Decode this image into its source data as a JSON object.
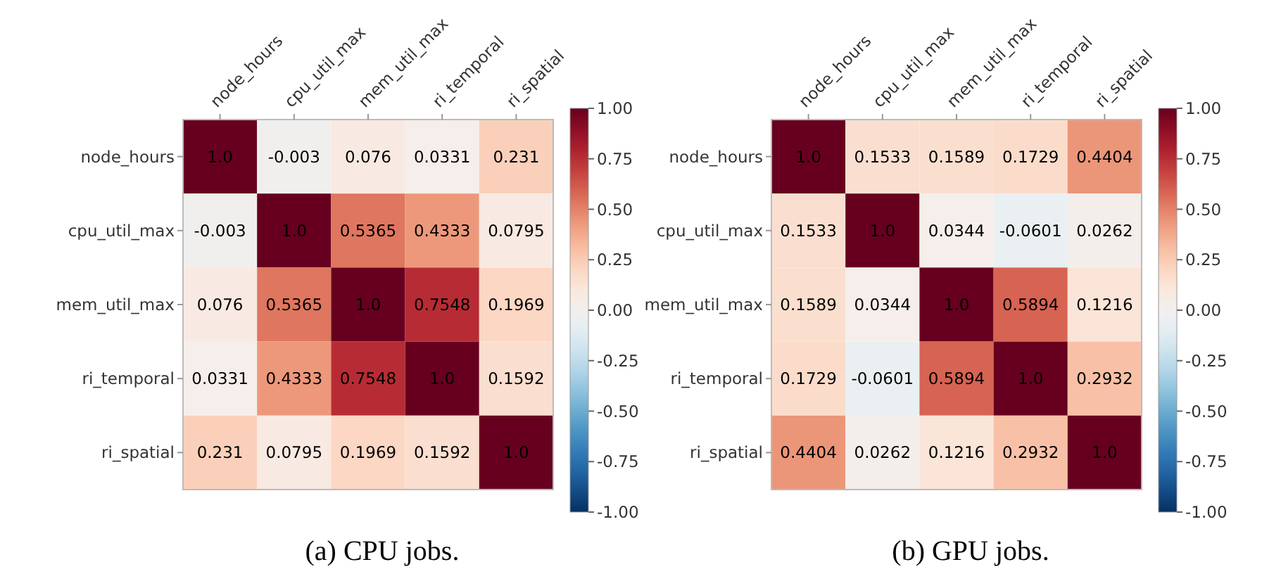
{
  "chart_data": [
    {
      "type": "heatmap",
      "categories": [
        "node_hours",
        "cpu_util_max",
        "mem_util_max",
        "ri_temporal",
        "ri_spatial"
      ],
      "y_categories": [
        "node_hours",
        "cpu_util_max",
        "mem_util_max",
        "ri_temporal",
        "ri_spatial"
      ],
      "cells": [
        [
          1,
          -0.003,
          0.076,
          0.0331,
          0.231
        ],
        [
          -0.003,
          1,
          0.5365,
          0.4333,
          0.0795
        ],
        [
          0.076,
          0.5365,
          1,
          0.7548,
          0.1969
        ],
        [
          0.0331,
          0.4333,
          0.7548,
          1,
          0.1592
        ],
        [
          0.231,
          0.0795,
          0.1969,
          0.1592,
          1
        ]
      ],
      "cell_labels": [
        [
          "1.0",
          "-0.003",
          "0.076",
          "0.0331",
          "0.231"
        ],
        [
          "-0.003",
          "1.0",
          "0.5365",
          "0.4333",
          "0.0795"
        ],
        [
          "0.076",
          "0.5365",
          "1.0",
          "0.7548",
          "0.1969"
        ],
        [
          "0.0331",
          "0.4333",
          "0.7548",
          "1.0",
          "0.1592"
        ],
        [
          "0.231",
          "0.0795",
          "0.1969",
          "0.1592",
          "1.0"
        ]
      ],
      "clim": [
        -1,
        1
      ],
      "cticks": [
        {
          "value": -1,
          "label": "-1.00"
        },
        {
          "value": -0.75,
          "label": "-0.75"
        },
        {
          "value": -0.5,
          "label": "-0.50"
        },
        {
          "value": -0.25,
          "label": "-0.25"
        },
        {
          "value": 0,
          "label": "0.00"
        },
        {
          "value": 0.25,
          "label": "0.25"
        },
        {
          "value": 0.5,
          "label": "0.50"
        },
        {
          "value": 0.75,
          "label": "0.75"
        },
        {
          "value": 1,
          "label": "1.00"
        }
      ],
      "annotations": [
        "(a) CPU jobs."
      ]
    },
    {
      "type": "heatmap",
      "categories": [
        "node_hours",
        "cpu_util_max",
        "mem_util_max",
        "ri_temporal",
        "ri_spatial"
      ],
      "y_categories": [
        "node_hours",
        "cpu_util_max",
        "mem_util_max",
        "ri_temporal",
        "ri_spatial"
      ],
      "cells": [
        [
          1,
          0.1533,
          0.1589,
          0.1729,
          0.4404
        ],
        [
          0.1533,
          1,
          0.0344,
          -0.0601,
          0.0262
        ],
        [
          0.1589,
          0.0344,
          1,
          0.5894,
          0.1216
        ],
        [
          0.1729,
          -0.0601,
          0.5894,
          1,
          0.2932
        ],
        [
          0.4404,
          0.0262,
          0.1216,
          0.2932,
          1
        ]
      ],
      "cell_labels": [
        [
          "1.0",
          "0.1533",
          "0.1589",
          "0.1729",
          "0.4404"
        ],
        [
          "0.1533",
          "1.0",
          "0.0344",
          "-0.0601",
          "0.0262"
        ],
        [
          "0.1589",
          "0.0344",
          "1.0",
          "0.5894",
          "0.1216"
        ],
        [
          "0.1729",
          "-0.0601",
          "0.5894",
          "1.0",
          "0.2932"
        ],
        [
          "0.4404",
          "0.0262",
          "0.1216",
          "0.2932",
          "1.0"
        ]
      ],
      "clim": [
        -1,
        1
      ],
      "cticks": [
        {
          "value": -1,
          "label": "-1.00"
        },
        {
          "value": -0.75,
          "label": "-0.75"
        },
        {
          "value": -0.5,
          "label": "-0.50"
        },
        {
          "value": -0.25,
          "label": "-0.25"
        },
        {
          "value": 0,
          "label": "0.00"
        },
        {
          "value": 0.25,
          "label": "0.25"
        },
        {
          "value": 0.5,
          "label": "0.50"
        },
        {
          "value": 0.75,
          "label": "0.75"
        },
        {
          "value": 1,
          "label": "1.00"
        }
      ],
      "annotations": [
        "(b) GPU jobs."
      ]
    }
  ]
}
